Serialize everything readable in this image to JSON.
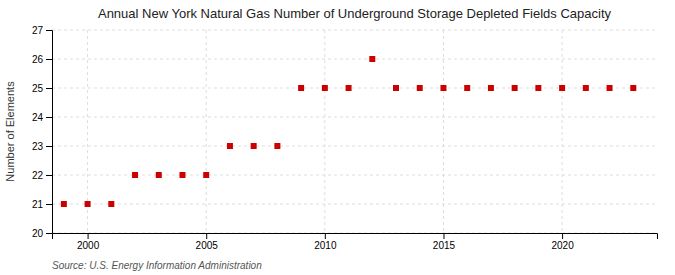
{
  "chart_data": {
    "type": "scatter",
    "title": "Annual New York Natural Gas Number of Underground Storage Depleted Fields Capacity",
    "ylabel": "Number of Elements",
    "source": "Source: U.S. Energy Information Administration",
    "x": [
      1999,
      2000,
      2001,
      2002,
      2003,
      2004,
      2005,
      2006,
      2007,
      2008,
      2009,
      2010,
      2011,
      2012,
      2013,
      2014,
      2015,
      2016,
      2017,
      2018,
      2019,
      2020,
      2021,
      2022,
      2023
    ],
    "values": [
      21,
      21,
      21,
      22,
      22,
      22,
      22,
      23,
      23,
      23,
      25,
      25,
      25,
      26,
      25,
      25,
      25,
      25,
      25,
      25,
      25,
      25,
      25,
      25,
      25
    ],
    "color": "#cc0000",
    "marker": "square",
    "xlim": [
      1998.5,
      2024
    ],
    "xticks": [
      2000,
      2005,
      2010,
      2015,
      2020
    ],
    "ylim": [
      20,
      27
    ],
    "yticks": [
      20,
      21,
      22,
      23,
      24,
      25,
      26,
      27
    ],
    "grid": true
  }
}
